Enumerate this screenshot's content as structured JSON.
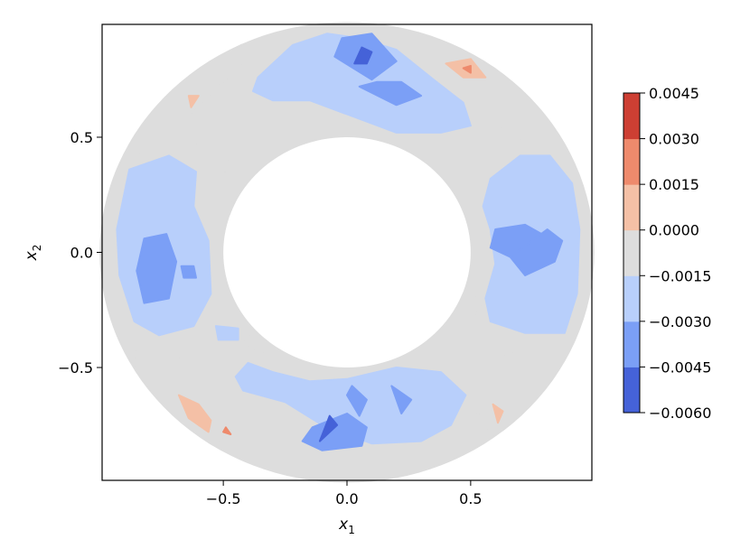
{
  "chart_data": {
    "type": "contourf",
    "xlabel": "x",
    "xlabel_sub": "1",
    "ylabel": "x",
    "ylabel_sub": "2",
    "xlim": [
      -0.99,
      0.99
    ],
    "ylim": [
      -0.99,
      0.99
    ],
    "xticks": [
      {
        "value": -0.5,
        "label": "−0.5"
      },
      {
        "value": 0.0,
        "label": "0.0"
      },
      {
        "value": 0.5,
        "label": "0.5"
      }
    ],
    "yticks": [
      {
        "value": -0.5,
        "label": "−0.5"
      },
      {
        "value": 0.0,
        "label": "0.0"
      },
      {
        "value": 0.5,
        "label": "0.5"
      }
    ],
    "domain": {
      "shape": "annulus",
      "inner_radius": 0.5,
      "outer_radius": 1.0
    },
    "colorbar": {
      "levels": [
        -0.006,
        -0.0045,
        -0.003,
        -0.0015,
        0.0,
        0.0015,
        0.003,
        0.0045
      ],
      "labels": [
        "−0.0060",
        "−0.0045",
        "−0.0030",
        "−0.0015",
        "0.0000",
        "0.0015",
        "0.0030",
        "0.0045"
      ],
      "colors": [
        "#4562d8",
        "#7b9ff6",
        "#b8cffb",
        "#dddddd",
        "#f4c0a6",
        "#ee8a6c",
        "#cd3f33"
      ]
    },
    "regions": [
      {
        "level": 0,
        "points": [
          [
            0.06,
            0.89
          ],
          [
            0.1,
            0.87
          ],
          [
            0.08,
            0.82
          ],
          [
            0.03,
            0.82
          ]
        ]
      },
      {
        "level": 0,
        "points": [
          [
            -0.04,
            -0.75
          ],
          [
            -0.07,
            -0.71
          ],
          [
            -0.11,
            -0.82
          ]
        ]
      },
      {
        "level": 1,
        "points": [
          [
            -0.02,
            0.93
          ],
          [
            0.1,
            0.95
          ],
          [
            0.2,
            0.83
          ],
          [
            0.1,
            0.75
          ],
          [
            -0.05,
            0.85
          ]
        ]
      },
      {
        "level": 1,
        "points": [
          [
            0.05,
            0.72
          ],
          [
            0.2,
            0.64
          ],
          [
            0.3,
            0.68
          ],
          [
            0.22,
            0.74
          ],
          [
            0.12,
            0.74
          ]
        ]
      },
      {
        "level": 1,
        "points": [
          [
            -0.82,
            0.06
          ],
          [
            -0.73,
            0.08
          ],
          [
            -0.69,
            -0.04
          ],
          [
            -0.72,
            -0.2
          ],
          [
            -0.82,
            -0.22
          ],
          [
            -0.85,
            -0.08
          ]
        ]
      },
      {
        "level": 1,
        "points": [
          [
            -0.67,
            -0.06
          ],
          [
            -0.62,
            -0.06
          ],
          [
            -0.61,
            -0.11
          ],
          [
            -0.66,
            -0.11
          ]
        ]
      },
      {
        "level": 1,
        "points": [
          [
            0.6,
            0.1
          ],
          [
            0.72,
            0.12
          ],
          [
            0.82,
            0.06
          ],
          [
            0.73,
            -0.08
          ],
          [
            0.66,
            -0.02
          ],
          [
            0.58,
            0.02
          ]
        ]
      },
      {
        "level": 1,
        "points": [
          [
            0.66,
            -0.02
          ],
          [
            0.81,
            0.1
          ],
          [
            0.87,
            0.05
          ],
          [
            0.84,
            -0.04
          ],
          [
            0.72,
            -0.1
          ]
        ]
      },
      {
        "level": 1,
        "points": [
          [
            -0.14,
            -0.76
          ],
          [
            0.0,
            -0.7
          ],
          [
            0.08,
            -0.76
          ],
          [
            0.06,
            -0.84
          ],
          [
            -0.1,
            -0.86
          ],
          [
            -0.18,
            -0.82
          ]
        ]
      },
      {
        "level": 1,
        "points": [
          [
            0.0,
            -0.62
          ],
          [
            0.02,
            -0.58
          ],
          [
            0.08,
            -0.64
          ],
          [
            0.05,
            -0.71
          ]
        ]
      },
      {
        "level": 1,
        "points": [
          [
            0.18,
            -0.58
          ],
          [
            0.26,
            -0.64
          ],
          [
            0.22,
            -0.7
          ]
        ]
      },
      {
        "level": 2,
        "points": [
          [
            -0.36,
            0.76
          ],
          [
            -0.22,
            0.9
          ],
          [
            -0.08,
            0.95
          ],
          [
            0.05,
            0.93
          ],
          [
            0.2,
            0.88
          ],
          [
            0.35,
            0.75
          ],
          [
            0.47,
            0.65
          ],
          [
            0.5,
            0.55
          ],
          [
            0.38,
            0.52
          ],
          [
            0.2,
            0.52
          ],
          [
            0.1,
            0.56
          ],
          [
            0.0,
            0.6
          ],
          [
            -0.15,
            0.66
          ],
          [
            -0.3,
            0.66
          ],
          [
            -0.38,
            0.7
          ]
        ]
      },
      {
        "level": 2,
        "points": [
          [
            -0.88,
            0.36
          ],
          [
            -0.72,
            0.42
          ],
          [
            -0.61,
            0.35
          ],
          [
            -0.62,
            0.2
          ],
          [
            -0.56,
            0.05
          ],
          [
            -0.55,
            -0.18
          ],
          [
            -0.62,
            -0.32
          ],
          [
            -0.76,
            -0.36
          ],
          [
            -0.86,
            -0.3
          ],
          [
            -0.92,
            -0.1
          ],
          [
            -0.93,
            0.1
          ]
        ]
      },
      {
        "level": 2,
        "points": [
          [
            0.58,
            0.32
          ],
          [
            0.7,
            0.42
          ],
          [
            0.82,
            0.42
          ],
          [
            0.91,
            0.3
          ],
          [
            0.94,
            0.1
          ],
          [
            0.93,
            -0.18
          ],
          [
            0.88,
            -0.35
          ],
          [
            0.72,
            -0.35
          ],
          [
            0.58,
            -0.3
          ],
          [
            0.56,
            -0.2
          ],
          [
            0.6,
            -0.05
          ],
          [
            0.58,
            0.1
          ],
          [
            0.55,
            0.2
          ]
        ]
      },
      {
        "level": 2,
        "points": [
          [
            -0.42,
            -0.6
          ],
          [
            -0.25,
            -0.65
          ],
          [
            -0.1,
            -0.75
          ],
          [
            0.1,
            -0.83
          ],
          [
            0.3,
            -0.82
          ],
          [
            0.42,
            -0.75
          ],
          [
            0.48,
            -0.62
          ],
          [
            0.38,
            -0.52
          ],
          [
            0.2,
            -0.5
          ],
          [
            0.0,
            -0.55
          ],
          [
            -0.15,
            -0.56
          ],
          [
            -0.3,
            -0.52
          ],
          [
            -0.4,
            -0.48
          ],
          [
            -0.45,
            -0.54
          ]
        ]
      },
      {
        "level": 2,
        "points": [
          [
            -0.53,
            -0.32
          ],
          [
            -0.44,
            -0.33
          ],
          [
            -0.44,
            -0.38
          ],
          [
            -0.52,
            -0.38
          ]
        ]
      },
      {
        "level": 3,
        "points": [
          [
            -0.86,
            0.7
          ],
          [
            -0.55,
            0.9
          ],
          [
            -0.43,
            0.91
          ],
          [
            -0.4,
            0.85
          ],
          [
            -0.5,
            0.74
          ],
          [
            -0.62,
            0.62
          ],
          [
            -0.72,
            0.48
          ],
          [
            -0.84,
            0.42
          ],
          [
            -0.88,
            0.5
          ]
        ]
      },
      {
        "level": 3,
        "points": [
          [
            0.44,
            0.83
          ],
          [
            0.62,
            0.8
          ],
          [
            0.85,
            0.62
          ],
          [
            0.9,
            0.45
          ],
          [
            0.75,
            0.45
          ],
          [
            0.62,
            0.55
          ],
          [
            0.52,
            0.62
          ],
          [
            0.47,
            0.72
          ]
        ]
      },
      {
        "level": 3,
        "points": [
          [
            -0.85,
            -0.42
          ],
          [
            -0.72,
            -0.45
          ],
          [
            -0.55,
            -0.5
          ],
          [
            -0.45,
            -0.62
          ],
          [
            -0.5,
            -0.8
          ],
          [
            -0.62,
            -0.9
          ],
          [
            -0.75,
            -0.75
          ],
          [
            -0.86,
            -0.6
          ]
        ]
      },
      {
        "level": 3,
        "points": [
          [
            0.6,
            -0.45
          ],
          [
            0.72,
            -0.43
          ],
          [
            0.82,
            -0.42
          ],
          [
            0.85,
            -0.55
          ],
          [
            0.72,
            -0.72
          ],
          [
            0.58,
            -0.8
          ],
          [
            0.52,
            -0.68
          ],
          [
            0.5,
            -0.55
          ]
        ]
      },
      {
        "level": 3,
        "points": [
          [
            0.43,
            -0.58
          ],
          [
            0.53,
            -0.6
          ],
          [
            0.55,
            -0.67
          ],
          [
            0.46,
            -0.68
          ],
          [
            0.4,
            -0.63
          ]
        ]
      },
      {
        "level": 3,
        "points": [
          [
            0.2,
            0.55
          ],
          [
            0.3,
            0.55
          ],
          [
            0.32,
            0.48
          ],
          [
            0.22,
            0.46
          ]
        ]
      },
      {
        "level": 3,
        "points": [
          [
            0.42,
            0.38
          ],
          [
            0.53,
            0.38
          ],
          [
            0.55,
            0.3
          ],
          [
            0.45,
            0.32
          ]
        ]
      },
      {
        "level": 3,
        "points": [
          [
            -0.5,
            0.25
          ],
          [
            -0.43,
            0.2
          ],
          [
            -0.47,
            0.16
          ]
        ]
      },
      {
        "level": 3,
        "points": [
          [
            -0.45,
            -0.1
          ],
          [
            -0.38,
            -0.14
          ],
          [
            -0.42,
            -0.2
          ]
        ]
      },
      {
        "level": 3,
        "points": [
          [
            -0.42,
            -0.35
          ],
          [
            -0.32,
            -0.38
          ],
          [
            -0.3,
            -0.45
          ],
          [
            -0.4,
            -0.42
          ]
        ]
      },
      {
        "level": 3,
        "points": [
          [
            0.42,
            -0.18
          ],
          [
            0.55,
            -0.2
          ],
          [
            0.52,
            -0.28
          ],
          [
            0.44,
            -0.26
          ]
        ]
      },
      {
        "level": 3,
        "points": [
          [
            -0.62,
            0.48
          ],
          [
            -0.52,
            0.45
          ],
          [
            -0.45,
            0.35
          ],
          [
            -0.55,
            0.36
          ]
        ]
      },
      {
        "level": 4,
        "points": [
          [
            0.4,
            0.82
          ],
          [
            0.5,
            0.84
          ],
          [
            0.56,
            0.76
          ],
          [
            0.47,
            0.76
          ]
        ]
      },
      {
        "level": 4,
        "points": [
          [
            -0.68,
            -0.62
          ],
          [
            -0.6,
            -0.66
          ],
          [
            -0.55,
            -0.73
          ],
          [
            -0.56,
            -0.78
          ],
          [
            -0.64,
            -0.72
          ]
        ]
      },
      {
        "level": 4,
        "points": [
          [
            -0.63,
            0.63
          ],
          [
            -0.6,
            0.68
          ],
          [
            -0.64,
            0.68
          ]
        ]
      },
      {
        "level": 4,
        "points": [
          [
            0.59,
            -0.66
          ],
          [
            0.63,
            -0.69
          ],
          [
            0.61,
            -0.74
          ]
        ]
      },
      {
        "level": 5,
        "points": [
          [
            0.47,
            0.8
          ],
          [
            0.5,
            0.81
          ],
          [
            0.5,
            0.78
          ]
        ]
      },
      {
        "level": 5,
        "points": [
          [
            -0.5,
            -0.78
          ],
          [
            -0.47,
            -0.79
          ],
          [
            -0.49,
            -0.76
          ]
        ]
      }
    ]
  }
}
